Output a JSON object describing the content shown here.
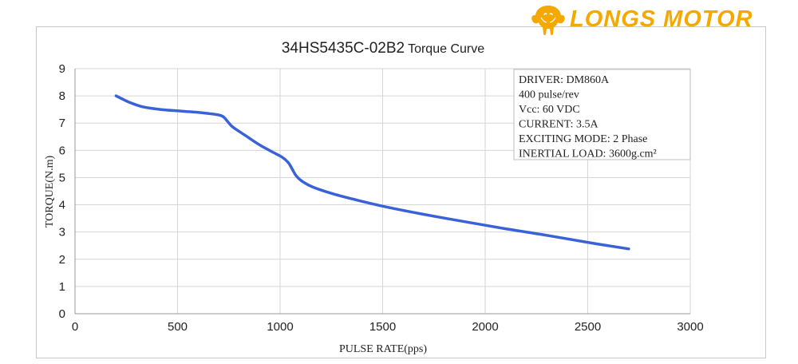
{
  "brand": {
    "name": "LONGS MOTOR",
    "logo_icon": "elephant-head-icon",
    "color": "#f5a800"
  },
  "chart_data": {
    "type": "line",
    "title": "34HS5435C-02B2 Torque Curve",
    "title_model": "34HS5435C-02B2",
    "title_suffix": "Torque Curve",
    "xlabel": "PULSE RATE(pps)",
    "ylabel": "TORQUE(N.m)",
    "xlim": [
      0,
      3000
    ],
    "ylim": [
      0,
      9
    ],
    "xticks": [
      0,
      500,
      1000,
      1500,
      2000,
      2500,
      3000
    ],
    "yticks": [
      0,
      1,
      2,
      3,
      4,
      5,
      6,
      7,
      8,
      9
    ],
    "grid": true,
    "series_color": "#3a62d8",
    "series": [
      {
        "x": [
          200,
          260,
          330,
          420,
          520,
          620,
          700,
          725,
          745,
          770,
          830,
          900,
          960,
          1010,
          1040,
          1060,
          1080,
          1110,
          1160,
          1250,
          1350,
          1500,
          1700,
          1900,
          2100,
          2300,
          2500,
          2700
        ],
        "y": [
          8.0,
          7.78,
          7.6,
          7.5,
          7.44,
          7.38,
          7.3,
          7.22,
          7.05,
          6.85,
          6.55,
          6.2,
          5.95,
          5.75,
          5.55,
          5.3,
          5.05,
          4.85,
          4.65,
          4.42,
          4.22,
          3.95,
          3.65,
          3.38,
          3.12,
          2.88,
          2.62,
          2.38
        ]
      }
    ],
    "info_box": {
      "placement": "top-right",
      "lines": [
        "DRIVER: DM860A",
        "400  pulse/rev",
        "Vcc: 60 VDC",
        "CURRENT: 3.5A",
        "EXCITING MODE: 2 Phase",
        "INERTIAL LOAD: 3600g.cm²"
      ]
    }
  }
}
